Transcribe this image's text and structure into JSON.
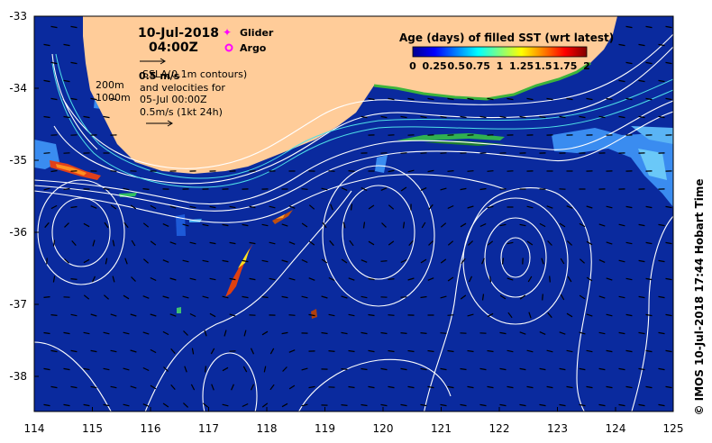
{
  "map": {
    "date": "10-Jul-2018",
    "time": "04:00Z",
    "credit": "© IMOS 10-Jul-2018 17:44 Hobart Time",
    "x_axis_labels": [
      "114",
      "115",
      "116",
      "117",
      "118",
      "119",
      "120",
      "121",
      "122",
      "123",
      "124",
      "125"
    ],
    "y_axis_labels": [
      "-33",
      "-34",
      "-35",
      "-36",
      "-37",
      "-38"
    ],
    "markers": {
      "glider_label": "Glider",
      "argo_label": "Argo",
      "glider_color": "#ff00ff",
      "argo_color": "#ff00ff"
    },
    "notes": {
      "sla_overlap": "SSLA(0.1m contours)",
      "scale_overlap": "0.5 m/s",
      "velocities_line1": "and velocities for",
      "velocities_line2": "05-Jul 00:00Z",
      "velocities_line3": "0.5m/s (1kt 24h)",
      "isobath_200": "200m",
      "isobath_1000": "1000m"
    },
    "colorbar": {
      "title": "Age (days) of filled SST (wrt latest)",
      "tick_labels": [
        "0",
        "0.25",
        "0.5",
        "0.75",
        "1",
        "1.25",
        "1.5",
        "1.75",
        "2"
      ],
      "range": [
        0,
        2
      ]
    },
    "colors": {
      "ocean": "#0a2a9e",
      "land": "#ffcc99",
      "contour": "#ffffff",
      "isobath": "#4fe0e8"
    }
  }
}
